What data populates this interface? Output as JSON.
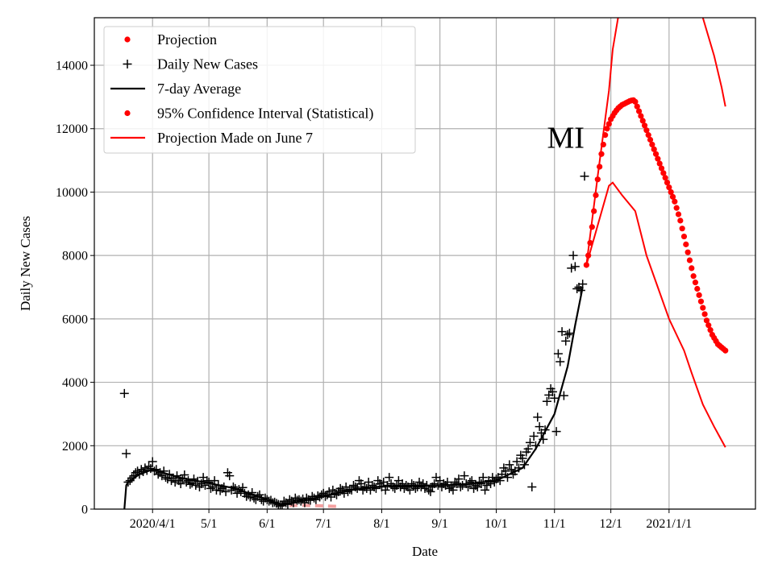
{
  "chart_data": {
    "type": "scatter",
    "title": "",
    "xlabel": "Date",
    "ylabel": "Daily New Cases",
    "xlim": [
      "2020-03-01",
      "2021-02-16"
    ],
    "ylim": [
      0,
      15500
    ],
    "grid": true,
    "legend_position": "top-left",
    "x_ticks": [
      {
        "date": "2020-04-01",
        "label": "2020/4/1"
      },
      {
        "date": "2020-05-01",
        "label": "5/1"
      },
      {
        "date": "2020-06-01",
        "label": "6/1"
      },
      {
        "date": "2020-07-01",
        "label": "7/1"
      },
      {
        "date": "2020-08-01",
        "label": "8/1"
      },
      {
        "date": "2020-09-01",
        "label": "9/1"
      },
      {
        "date": "2020-10-01",
        "label": "10/1"
      },
      {
        "date": "2020-11-01",
        "label": "11/1"
      },
      {
        "date": "2020-12-01",
        "label": "12/1"
      },
      {
        "date": "2021-01-01",
        "label": "2021/1/1"
      }
    ],
    "y_ticks": [
      0,
      2000,
      4000,
      6000,
      8000,
      10000,
      12000,
      14000
    ],
    "annotation": {
      "text": "MI",
      "date": "2020-11-07",
      "value": 11700
    },
    "legend": [
      {
        "label": "Projection",
        "marker": "dot",
        "color": "#ff0000"
      },
      {
        "label": "Daily New Cases",
        "marker": "plus",
        "color": "#000000"
      },
      {
        "label": "7-day Average",
        "marker": "line",
        "color": "#000000"
      },
      {
        "label": "95% Confidence Interval (Statistical)",
        "marker": "dot",
        "color": "#ff0000"
      },
      {
        "label": "Projection Made on June 7",
        "marker": "line",
        "color": "#ff0000"
      }
    ],
    "series": {
      "daily_new_cases": {
        "color": "#000000",
        "start_date": "2020-03-17",
        "values": [
          3650,
          1750,
          850,
          900,
          980,
          1050,
          1150,
          1200,
          1100,
          1250,
          1180,
          1300,
          1220,
          1350,
          1280,
          1500,
          1200,
          1250,
          1100,
          1150,
          1050,
          1200,
          1000,
          950,
          1100,
          900,
          980,
          850,
          1050,
          900,
          800,
          950,
          1080,
          850,
          900,
          780,
          820,
          950,
          750,
          880,
          700,
          800,
          1000,
          750,
          900,
          850,
          650,
          700,
          900,
          600,
          750,
          580,
          650,
          700,
          550,
          1150,
          1050,
          600,
          700,
          650,
          500,
          620,
          550,
          680,
          500,
          400,
          450,
          380,
          520,
          350,
          300,
          400,
          450,
          300,
          250,
          350,
          300,
          250,
          280,
          200,
          220,
          180,
          150,
          100,
          120,
          250,
          200,
          150,
          300,
          250,
          200,
          350,
          280,
          300,
          250,
          320,
          200,
          350,
          300,
          280,
          400,
          350,
          300,
          420,
          380,
          450,
          500,
          400,
          450,
          550,
          380,
          600,
          500,
          450,
          550,
          650,
          600,
          500,
          700,
          550,
          620,
          600,
          750,
          700,
          650,
          900,
          800,
          600,
          700,
          650,
          850,
          600,
          750,
          700,
          650,
          900,
          800,
          700,
          850,
          600,
          750,
          1000,
          800,
          700,
          650,
          750,
          900,
          700,
          800,
          650,
          750,
          700,
          600,
          800,
          750,
          650,
          700,
          850,
          700,
          800,
          650,
          750,
          600,
          550,
          700,
          800,
          1000,
          750,
          900,
          700,
          800,
          750,
          850,
          650,
          700,
          600,
          850,
          800,
          950,
          700,
          750,
          1050,
          800,
          700,
          850,
          900,
          650,
          750,
          700,
          850,
          800,
          1000,
          600,
          750,
          900,
          800,
          1000,
          850,
          950,
          1000,
          900,
          1100,
          1300,
          1200,
          1000,
          1400,
          1250,
          1100,
          1200,
          1500,
          1300,
          1700,
          1600,
          1400,
          1800,
          1900,
          2100,
          700,
          2300,
          2000,
          2900,
          2600,
          2400,
          2200,
          2500,
          3400,
          3600,
          3800,
          3700,
          3500,
          2450,
          4900,
          4650,
          5600,
          3580,
          5300,
          5500,
          5550,
          7600,
          8000,
          7650,
          6950,
          7000,
          6900,
          7100,
          10500
        ]
      },
      "seven_day_average": {
        "color": "#000000",
        "points": [
          [
            "2020-03-17",
            0
          ],
          [
            "2020-03-18",
            750
          ],
          [
            "2020-03-19",
            850
          ],
          [
            "2020-03-25",
            1100
          ],
          [
            "2020-04-01",
            1250
          ],
          [
            "2020-04-15",
            1000
          ],
          [
            "2020-05-01",
            820
          ],
          [
            "2020-05-15",
            650
          ],
          [
            "2020-06-01",
            300
          ],
          [
            "2020-06-08",
            150
          ],
          [
            "2020-06-15",
            200
          ],
          [
            "2020-07-01",
            400
          ],
          [
            "2020-07-15",
            600
          ],
          [
            "2020-08-01",
            720
          ],
          [
            "2020-09-01",
            750
          ],
          [
            "2020-09-15",
            780
          ],
          [
            "2020-10-01",
            900
          ],
          [
            "2020-10-15",
            1300
          ],
          [
            "2020-10-22",
            1900
          ],
          [
            "2020-11-01",
            3000
          ],
          [
            "2020-11-08",
            4500
          ],
          [
            "2020-11-12",
            5800
          ],
          [
            "2020-11-16",
            7000
          ]
        ]
      },
      "projection": {
        "color": "#ff0000",
        "start_date": "2020-11-18",
        "values": [
          7700,
          8000,
          8400,
          8900,
          9400,
          9900,
          10400,
          10800,
          11200,
          11500,
          11800,
          12000,
          12150,
          12300,
          12400,
          12500,
          12580,
          12650,
          12700,
          12750,
          12780,
          12810,
          12840,
          12870,
          12890,
          12900,
          12850,
          12700,
          12550,
          12400,
          12250,
          12100,
          11950,
          11800,
          11650,
          11500,
          11350,
          11200,
          11050,
          10900,
          10750,
          10600,
          10450,
          10300,
          10150,
          10000,
          9850,
          9700,
          9500,
          9300,
          9100,
          8850,
          8600,
          8350,
          8100,
          7850,
          7600,
          7350,
          7150,
          6950,
          6750,
          6550,
          6350,
          6150,
          5950,
          5800,
          5650,
          5500,
          5400,
          5300,
          5200,
          5150,
          5100,
          5050,
          5000
        ]
      },
      "confidence_upper": {
        "color": "#ff0000",
        "points": [
          [
            "2020-11-18",
            7700
          ],
          [
            "2020-11-24",
            10500
          ],
          [
            "2020-11-30",
            13200
          ],
          [
            "2020-12-02",
            14500
          ],
          [
            "2020-12-06",
            15900
          ],
          [
            "2021-01-15",
            16500
          ],
          [
            "2021-01-19",
            15500
          ],
          [
            "2021-01-25",
            14300
          ],
          [
            "2021-01-29",
            13300
          ],
          [
            "2021-01-31",
            12700
          ]
        ]
      },
      "confidence_lower": {
        "color": "#ff0000",
        "points": [
          [
            "2020-11-18",
            7700
          ],
          [
            "2020-11-30",
            10200
          ],
          [
            "2020-12-02",
            10300
          ],
          [
            "2020-12-07",
            9900
          ],
          [
            "2020-12-14",
            9400
          ],
          [
            "2020-12-20",
            8000
          ],
          [
            "2020-12-26",
            7000
          ],
          [
            "2021-01-01",
            6000
          ],
          [
            "2021-01-09",
            5000
          ],
          [
            "2021-01-13",
            4300
          ],
          [
            "2021-01-19",
            3300
          ],
          [
            "2021-01-25",
            2600
          ],
          [
            "2021-01-31",
            1950
          ]
        ]
      },
      "projection_june_7": {
        "color": "#f4a0a0",
        "points": [
          [
            "2020-06-06",
            150
          ],
          [
            "2020-06-12",
            110
          ],
          [
            "2020-06-20",
            120
          ],
          [
            "2020-07-01",
            100
          ],
          [
            "2020-07-10",
            80
          ]
        ]
      }
    }
  }
}
